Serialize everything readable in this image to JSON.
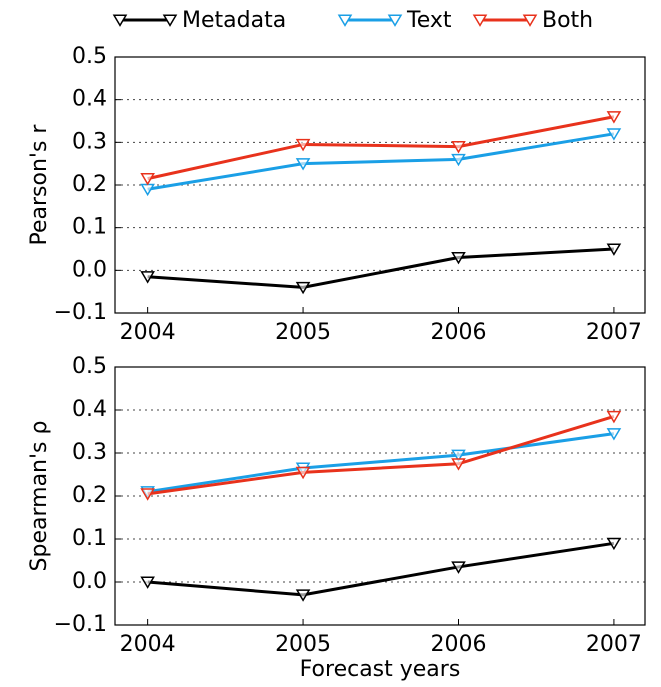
{
  "chart_data": [
    {
      "type": "line",
      "y_label": "Pearson's r",
      "x": [
        2004,
        2005,
        2006,
        2007
      ],
      "xlim": [
        2003.79,
        2007.2
      ],
      "xticks": [
        2004,
        2005,
        2006,
        2007
      ],
      "ylim": [
        -0.1,
        0.5
      ],
      "yticks": [
        {
          "value": -0.1,
          "label": "−0.1"
        },
        {
          "value": 0,
          "label": "0.0"
        },
        0.1,
        0.2,
        0.3,
        0.4,
        0.5
      ],
      "grid": true,
      "legend": "top",
      "series": [
        {
          "name": "Metadata",
          "color": "#000000",
          "values": [
            -0.015,
            -0.04,
            0.03,
            0.05
          ]
        },
        {
          "name": "Text",
          "color": "#1a9fe6",
          "values": [
            0.19,
            0.25,
            0.26,
            0.32
          ]
        },
        {
          "name": "Both",
          "color": "#e8321c",
          "values": [
            0.215,
            0.295,
            0.29,
            0.36
          ]
        }
      ]
    },
    {
      "type": "line",
      "y_label": "Spearman's ρ",
      "x_label": "Forecast years",
      "x": [
        2004,
        2005,
        2006,
        2007
      ],
      "xlim": [
        2003.79,
        2007.2
      ],
      "xticks": [
        2004,
        2005,
        2006,
        2007
      ],
      "ylim": [
        -0.1,
        0.5
      ],
      "yticks": [
        {
          "value": -0.1,
          "label": "−0.1"
        },
        {
          "value": 0,
          "label": "0.0"
        },
        0.1,
        0.2,
        0.3,
        0.4,
        0.5
      ],
      "grid": true,
      "series": [
        {
          "color": "#000000",
          "values": [
            0.0,
            -0.03,
            0.035,
            0.09
          ]
        },
        {
          "color": "#1a9fe6",
          "values": [
            0.21,
            0.265,
            0.295,
            0.345
          ]
        },
        {
          "color": "#e8321c",
          "values": [
            0.205,
            0.255,
            0.275,
            0.385
          ]
        }
      ]
    }
  ]
}
